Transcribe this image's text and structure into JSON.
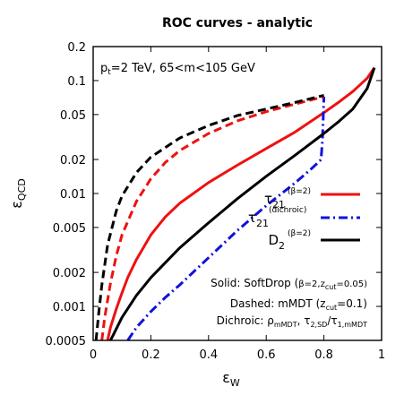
{
  "chart_data": {
    "type": "line",
    "title": "ROC curves - analytic",
    "xlabel": "ε",
    "xlabel_sub": "W",
    "ylabel": "ε",
    "ylabel_sub": "QCD",
    "x_scale": "linear",
    "y_scale": "log",
    "xlim": [
      0,
      1
    ],
    "ylim": [
      0.0005,
      0.2
    ],
    "x_ticks": [
      0,
      0.2,
      0.4,
      0.6,
      0.8,
      1
    ],
    "x_tick_labels": [
      "0",
      "0.2",
      "0.4",
      "0.6",
      "0.8",
      "1"
    ],
    "y_ticks": [
      0.0005,
      0.001,
      0.002,
      0.005,
      0.01,
      0.02,
      0.05,
      0.1,
      0.2
    ],
    "y_tick_labels": [
      "0.0005",
      "0.001",
      "0.002",
      "0.005",
      "0.01",
      "0.02",
      "0.05",
      "0.1",
      "0.2"
    ],
    "grid": false,
    "legend_position": "center-right",
    "annotations": {
      "top_left": {
        "p_main": "p",
        "p_sub": "t",
        "rest": "=2 TeV, 65<m<105 GeV"
      },
      "solid": {
        "prefix": "Solid: SoftDrop (",
        "params": "β=2,z",
        "sub": "cut",
        "suffix": "=0.05)"
      },
      "dashed": {
        "prefix": "Dashed: mMDT (z",
        "sub": "cut",
        "suffix": "=0.1)"
      },
      "dichroic": {
        "prefix": "Dichroic: ρ",
        "sub1": "mMDT",
        "mid1": ", τ",
        "sub2": "2,SD",
        "mid2": "/τ",
        "sub3": "1,mMDT"
      }
    },
    "series": [
      {
        "name": "τ",
        "name_sub": "21",
        "name_sup": "(β=2)",
        "color": "#ee1111",
        "style": "solid",
        "x": [
          0.05,
          0.06,
          0.08,
          0.1,
          0.12,
          0.15,
          0.2,
          0.25,
          0.3,
          0.4,
          0.5,
          0.6,
          0.7,
          0.8,
          0.85,
          0.9,
          0.95,
          0.975
        ],
        "y": [
          0.0005,
          0.00065,
          0.00095,
          0.00132,
          0.0018,
          0.0026,
          0.0043,
          0.0062,
          0.0082,
          0.0125,
          0.0178,
          0.025,
          0.035,
          0.052,
          0.064,
          0.08,
          0.105,
          0.13
        ]
      },
      {
        "name": "τ",
        "name_sub": "21",
        "name_sup": "(dichroic)",
        "color": "#1111dd",
        "style": "dashdot",
        "x": [
          0.12,
          0.15,
          0.2,
          0.25,
          0.3,
          0.4,
          0.5,
          0.6,
          0.7,
          0.75,
          0.78,
          0.79,
          0.795,
          0.8
        ],
        "y": [
          0.0005,
          0.00065,
          0.0009,
          0.0012,
          0.00155,
          0.0027,
          0.0047,
          0.0078,
          0.0124,
          0.016,
          0.0188,
          0.02,
          0.03,
          0.072
        ]
      },
      {
        "name": "D",
        "name_sub": "2",
        "name_sup": "(β=2)",
        "color": "#000000",
        "style": "solid",
        "x": [
          0.06,
          0.07,
          0.1,
          0.15,
          0.2,
          0.3,
          0.4,
          0.5,
          0.6,
          0.7,
          0.8,
          0.85,
          0.9,
          0.95,
          0.975
        ],
        "y": [
          0.0005,
          0.00056,
          0.0008,
          0.00125,
          0.0018,
          0.0033,
          0.0055,
          0.009,
          0.0142,
          0.0218,
          0.034,
          0.043,
          0.056,
          0.085,
          0.13
        ]
      },
      {
        "color": "#ee1111",
        "style": "dashed",
        "x": [
          0.03,
          0.04,
          0.06,
          0.08,
          0.1,
          0.15,
          0.2,
          0.25,
          0.3,
          0.4,
          0.5,
          0.6,
          0.7,
          0.8
        ],
        "y": [
          0.0005,
          0.0008,
          0.0016,
          0.0028,
          0.0043,
          0.0085,
          0.0135,
          0.0188,
          0.024,
          0.034,
          0.044,
          0.053,
          0.062,
          0.072
        ]
      },
      {
        "color": "#000000",
        "style": "dashed",
        "x": [
          0.01,
          0.02,
          0.03,
          0.05,
          0.08,
          0.1,
          0.15,
          0.2,
          0.3,
          0.4,
          0.5,
          0.6,
          0.7,
          0.8
        ],
        "y": [
          0.0005,
          0.0009,
          0.00155,
          0.0035,
          0.007,
          0.0095,
          0.0153,
          0.021,
          0.031,
          0.04,
          0.049,
          0.056,
          0.064,
          0.074
        ]
      }
    ]
  }
}
